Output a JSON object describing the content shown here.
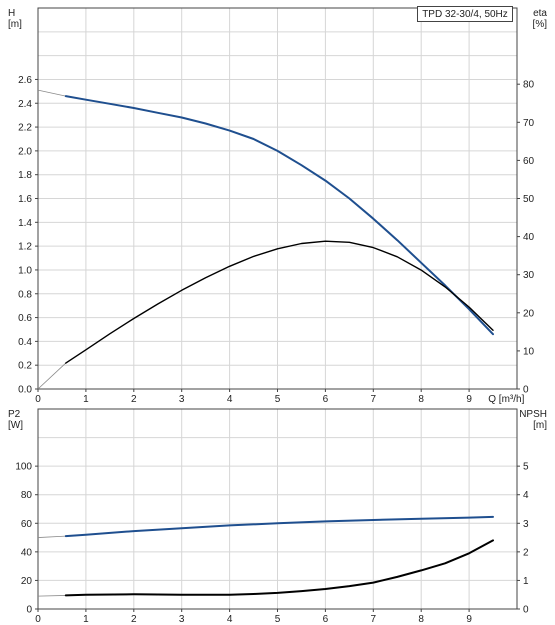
{
  "chart_data": [
    {
      "type": "line",
      "title": "TPD 32-30/4, 50Hz",
      "xlabel": "Q [m³/h]",
      "xlim": [
        0,
        10
      ],
      "x_ticks": [
        0,
        1,
        2,
        3,
        4,
        5,
        6,
        7,
        8,
        9
      ],
      "left_axis": {
        "label_top": "H",
        "label_unit": "[m]",
        "ylim": [
          0,
          3.2
        ],
        "ticks": [
          0.0,
          0.2,
          0.4,
          0.6,
          0.8,
          1.0,
          1.2,
          1.4,
          1.6,
          1.8,
          2.0,
          2.2,
          2.4,
          2.6
        ]
      },
      "right_axis": {
        "label_top": "eta",
        "label_unit": "[%]",
        "ylim": [
          0,
          100
        ],
        "ticks": [
          0,
          10,
          20,
          30,
          40,
          50,
          60,
          70,
          80
        ]
      },
      "grid": true,
      "series": [
        {
          "axis": "left",
          "color": "#1f4f8f",
          "extrapolated": {
            "x": [
              0,
              0.58
            ],
            "y": [
              2.51,
              2.46
            ]
          },
          "x": [
            0.58,
            1,
            1.5,
            2,
            2.5,
            3,
            3.5,
            4,
            4.5,
            5,
            5.5,
            6,
            6.5,
            7,
            7.5,
            8,
            8.5,
            9,
            9.5
          ],
          "y": [
            2.46,
            2.43,
            2.395,
            2.36,
            2.32,
            2.28,
            2.23,
            2.17,
            2.1,
            2.0,
            1.88,
            1.75,
            1.6,
            1.43,
            1.25,
            1.06,
            0.87,
            0.67,
            0.46
          ]
        },
        {
          "axis": "right",
          "color": "#000000",
          "extrapolated": {
            "x": [
              0,
              0.58
            ],
            "y": [
              0,
              6.8
            ]
          },
          "x": [
            0.58,
            1,
            1.5,
            2,
            2.5,
            3,
            3.5,
            4,
            4.5,
            5,
            5.5,
            6,
            6.5,
            7,
            7.5,
            8,
            8.5,
            9,
            9.5
          ],
          "y": [
            6.8,
            10.3,
            14.5,
            18.5,
            22.3,
            25.9,
            29.2,
            32.2,
            34.8,
            36.8,
            38.2,
            38.8,
            38.5,
            37.1,
            34.7,
            31.2,
            26.8,
            21.5,
            15.4
          ]
        }
      ]
    },
    {
      "type": "line",
      "title": "",
      "xlim": [
        0,
        10
      ],
      "x_ticks": [
        0,
        1,
        2,
        3,
        4,
        5,
        6,
        7,
        8,
        9
      ],
      "left_axis": {
        "label_top": "P2",
        "label_unit": "[W]",
        "ylim": [
          0,
          140
        ],
        "ticks": [
          0,
          20,
          40,
          60,
          80,
          100
        ]
      },
      "right_axis": {
        "label_top": "NPSH",
        "label_unit": "[m]",
        "ylim": [
          0,
          7
        ],
        "ticks": [
          0,
          1,
          2,
          3,
          4,
          5
        ]
      },
      "grid": true,
      "series": [
        {
          "axis": "left",
          "color": "#1f4f8f",
          "extrapolated": {
            "x": [
              0,
              0.58
            ],
            "y": [
              50,
              51
            ]
          },
          "x": [
            0.58,
            1,
            2,
            3,
            4,
            5,
            6,
            7,
            8,
            9,
            9.5
          ],
          "y": [
            51,
            52,
            54.5,
            56.5,
            58.5,
            60,
            61.3,
            62.3,
            63.2,
            64,
            64.5
          ]
        },
        {
          "axis": "left",
          "color": "#000000",
          "extrapolated": {
            "x": [
              0,
              0.58
            ],
            "y": [
              9,
              9.5
            ]
          },
          "x": [
            0.58,
            1,
            2,
            3,
            4,
            4.5,
            5,
            5.5,
            6,
            6.5,
            7,
            7.5,
            8,
            8.5,
            9,
            9.5
          ],
          "y": [
            9.5,
            10,
            10.3,
            10,
            10,
            10.5,
            11.3,
            12.5,
            14,
            16,
            18.5,
            22.5,
            27,
            32,
            39,
            48
          ]
        }
      ]
    }
  ]
}
